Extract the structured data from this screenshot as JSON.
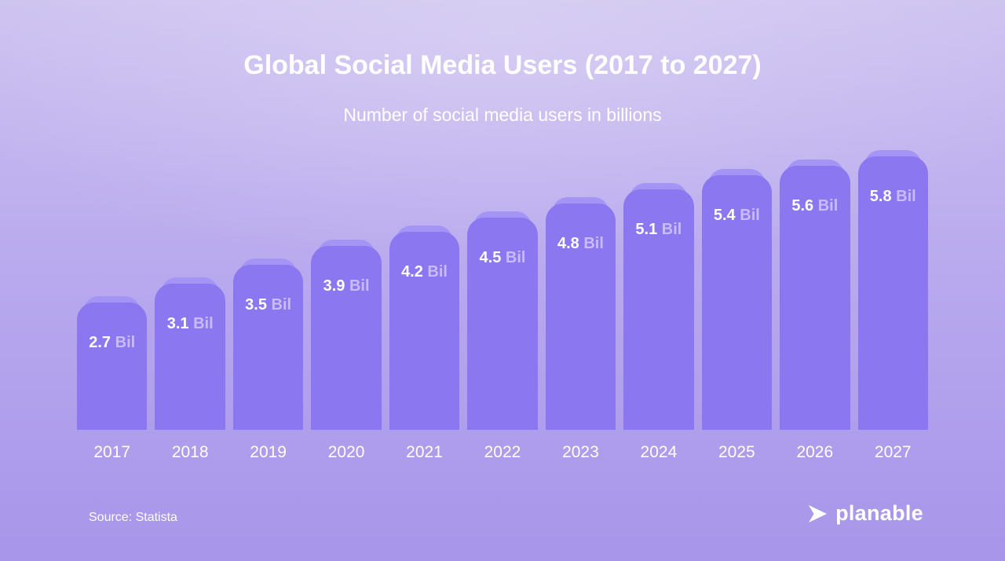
{
  "page": {
    "source": "Source: Statista",
    "brand": "planable"
  },
  "chart_data": {
    "type": "bar",
    "title": "Global Social Media Users (2017 to 2027)",
    "subtitle": "Number of social media users in billions",
    "categories": [
      "2017",
      "2018",
      "2019",
      "2020",
      "2021",
      "2022",
      "2023",
      "2024",
      "2025",
      "2026",
      "2027"
    ],
    "values": [
      2.7,
      3.1,
      3.5,
      3.9,
      4.2,
      4.5,
      4.8,
      5.1,
      5.4,
      5.6,
      5.8
    ],
    "unit": "Bil",
    "ylim": [
      0,
      6
    ],
    "grid": false,
    "legend": "none",
    "source": "Source: Statista",
    "colors": {
      "bar": "#8b77ef",
      "bar_cap": "#a494f5",
      "value_text": "#ffffff",
      "unit_text": "#c9bcf8",
      "background_top": "#cdc2f0",
      "background_bottom": "#a795ea",
      "text": "#ffffff"
    }
  }
}
